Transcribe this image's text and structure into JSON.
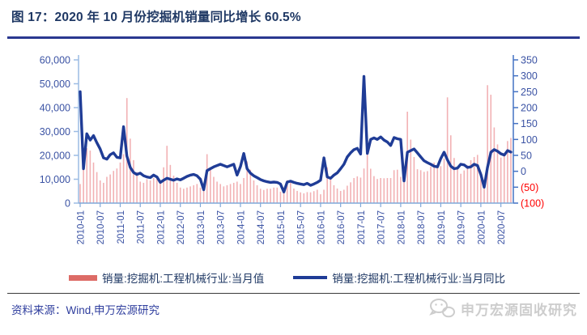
{
  "header": {
    "title": "图 17：2020 年 10 月份挖掘机销量同比增长 60.5%"
  },
  "footer": {
    "source": "资料来源：Wind,申万宏源研究",
    "watermark": "申万宏源固收研究"
  },
  "colors": {
    "title_navy": "#1F3864",
    "rule_navy": "#2A3890",
    "line": "#1F3C96",
    "bar": "#F2B1B4",
    "bar_legend": "#DD6B66",
    "axis_left": "#9CBCE4",
    "axis_right": "#4472C4",
    "axis_bottom": "#7FA8D9",
    "tick_label": "#3B53A4",
    "negative_tick": "#FF0000",
    "watermark_gray": "#CDCDCD"
  },
  "chart_data": {
    "type": "bar+line",
    "x_start": "2010-01",
    "x_end": "2020-10",
    "grid": false,
    "legend_position": "bottom",
    "x_tick_labels": [
      "2010-01",
      "2010-07",
      "2011-01",
      "2011-07",
      "2012-01",
      "2012-07",
      "2013-01",
      "2013-07",
      "2014-01",
      "2014-07",
      "2015-01",
      "2015-07",
      "2016-01",
      "2016-07",
      "2017-01",
      "2017-07",
      "2018-01",
      "2018-07",
      "2019-01",
      "2019-07",
      "2020-01",
      "2020-07"
    ],
    "left_axis": {
      "min": 0,
      "max": 60000,
      "values": [
        60000,
        50000,
        40000,
        30000,
        20000,
        10000,
        0
      ],
      "labels": [
        "60,000",
        "50,000",
        "40,000",
        "30,000",
        "20,000",
        "10,000",
        "0"
      ]
    },
    "right_axis": {
      "min": -100,
      "max": 350,
      "values": [
        350,
        300,
        250,
        200,
        150,
        100,
        50,
        0,
        -50,
        -100
      ],
      "labels": [
        "350",
        "300",
        "250",
        "200",
        "150",
        "100",
        "50",
        "0",
        "(50)",
        "(100)"
      ]
    },
    "series": [
      {
        "name": "销量:挖掘机:工程机械行业:当月值",
        "type": "bar",
        "axis": "left",
        "values": [
          8000,
          15000,
          23000,
          22000,
          17000,
          13000,
          9500,
          8500,
          11000,
          12000,
          13500,
          14500,
          17000,
          20500,
          44000,
          27000,
          18000,
          13000,
          9000,
          8500,
          10000,
          9500,
          10500,
          11000,
          9500,
          15000,
          24000,
          16000,
          11500,
          8500,
          6500,
          6000,
          6500,
          7000,
          7500,
          8000,
          6500,
          7500,
          20500,
          15000,
          11000,
          9000,
          8000,
          7000,
          7500,
          8000,
          8500,
          9000,
          8000,
          10500,
          17500,
          14000,
          9500,
          7500,
          6000,
          5500,
          6000,
          6000,
          6500,
          6500,
          4800,
          5200,
          9600,
          8600,
          6100,
          5100,
          4500,
          4100,
          4600,
          4500,
          5000,
          5600,
          3700,
          5600,
          15000,
          11000,
          7500,
          6100,
          5100,
          5600,
          7300,
          8700,
          10500,
          11200,
          10700,
          14500,
          21400,
          14400,
          11300,
          10100,
          10500,
          10400,
          10500,
          10500,
          13800,
          14000,
          11000,
          11100,
          38300,
          26600,
          19300,
          14200,
          13800,
          13100,
          13400,
          15300,
          17000,
          16000,
          15500,
          18700,
          44300,
          28400,
          18900,
          14600,
          12300,
          13700,
          15800,
          18000,
          19300,
          20200,
          9900,
          9300,
          49400,
          45400,
          31700,
          24600,
          19100,
          20900,
          26000,
          27300
        ]
      },
      {
        "name": "销量:挖掘机:工程机械行业:当月同比",
        "type": "line",
        "axis": "right",
        "values": [
          250,
          8,
          118,
          98,
          112,
          90,
          70,
          42,
          38,
          52,
          58,
          44,
          42,
          140,
          48,
          12,
          -4,
          -10,
          -6,
          -14,
          -18,
          -20,
          -12,
          -18,
          -35,
          -28,
          -22,
          -25,
          -28,
          -24,
          -27,
          -22,
          -16,
          -12,
          -10,
          -14,
          -25,
          -58,
          2,
          8,
          14,
          18,
          22,
          18,
          14,
          18,
          22,
          -12,
          15,
          56,
          8,
          -6,
          -14,
          -20,
          -26,
          -30,
          -33,
          -35,
          -34,
          -35,
          -40,
          -65,
          -34,
          -31,
          -35,
          -38,
          -40,
          -42,
          -38,
          -44,
          -40,
          -35,
          -28,
          42,
          -18,
          -22,
          -12,
          -5,
          8,
          22,
          45,
          58,
          68,
          72,
          54,
          298,
          56,
          100,
          105,
          100,
          108,
          98,
          92,
          81,
          106,
          102,
          100,
          -30,
          60,
          65,
          70,
          58,
          45,
          33,
          27,
          22,
          16,
          14,
          40,
          60,
          36,
          16,
          8,
          10,
          22,
          20,
          12,
          14,
          22,
          18,
          -10,
          -50,
          12,
          60,
          68,
          63,
          55,
          51,
          65,
          60.5
        ]
      }
    ]
  }
}
